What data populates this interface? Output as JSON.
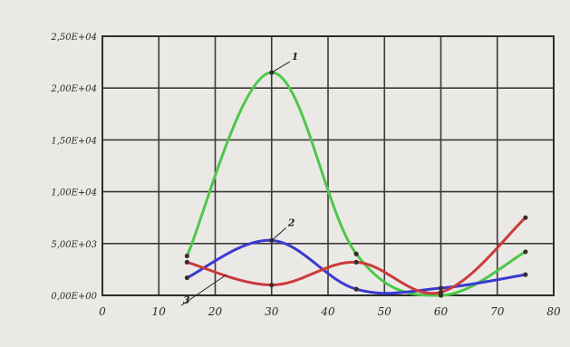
{
  "chart_data": {
    "type": "line",
    "title": "",
    "xlabel": "",
    "ylabel": "",
    "xlim": [
      0,
      80
    ],
    "ylim": [
      0,
      25000
    ],
    "grid": true,
    "x_ticks": [
      "0",
      "10",
      "20",
      "30",
      "40",
      "50",
      "60",
      "70",
      "80"
    ],
    "y_ticks": [
      "0,00E+00",
      "5,00E+03",
      "1,00E+04",
      "1,50E+04",
      "2,00E+04",
      "2,50E+04"
    ],
    "series": [
      {
        "name": "1",
        "color": "#4cc84a",
        "x": [
          15,
          30,
          45,
          60,
          75
        ],
        "y": [
          3800,
          21500,
          4000,
          0,
          4200
        ]
      },
      {
        "name": "2",
        "color": "#3a3ad0",
        "x": [
          15,
          30,
          45,
          60,
          75
        ],
        "y": [
          1700,
          5300,
          600,
          700,
          2000
        ]
      },
      {
        "name": "3",
        "color": "#cc3a3a",
        "x": [
          15,
          30,
          45,
          60,
          75
        ],
        "y": [
          3200,
          1000,
          3200,
          300,
          7500
        ]
      }
    ]
  }
}
